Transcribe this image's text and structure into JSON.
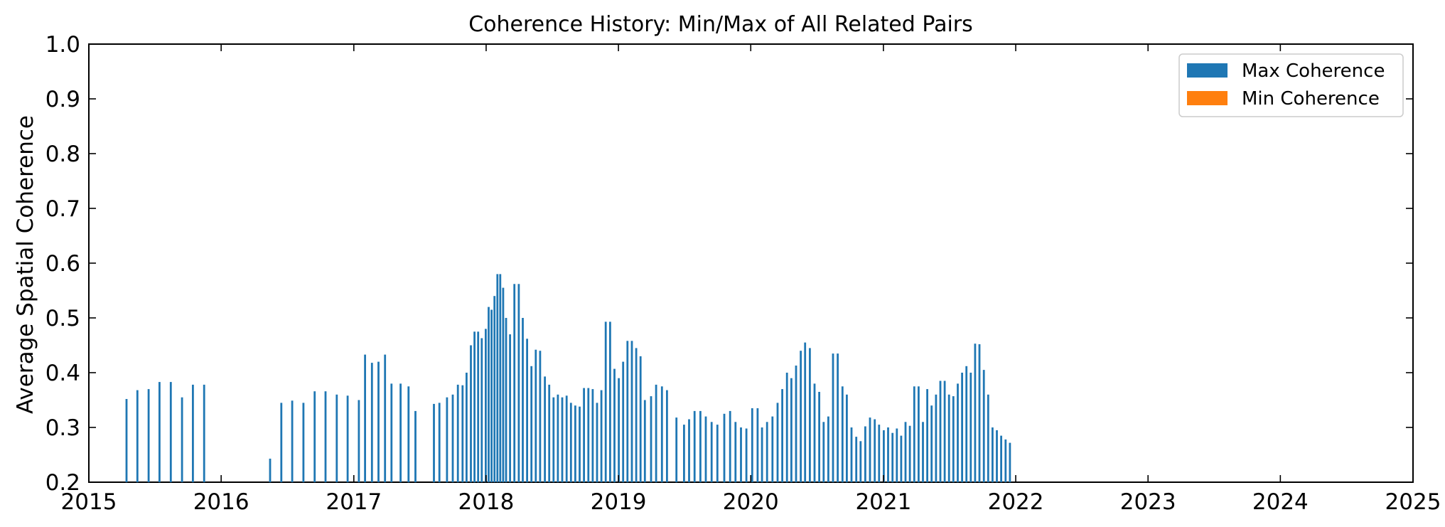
{
  "chart_data": {
    "type": "bar",
    "title": "Coherence History: Min/Max of All Related Pairs",
    "xlabel": "",
    "ylabel": "Average Spatial Coherence",
    "xlim": [
      "2015-01-01",
      "2025-01-01"
    ],
    "ylim": [
      0.2,
      1.0
    ],
    "x_ticks": [
      "2015",
      "2016",
      "2017",
      "2018",
      "2019",
      "2020",
      "2021",
      "2022",
      "2023",
      "2024",
      "2025"
    ],
    "y_ticks": [
      "0.2",
      "0.3",
      "0.4",
      "0.5",
      "0.6",
      "0.7",
      "0.8",
      "0.9",
      "1.0"
    ],
    "grid": false,
    "legend_position": "top-right",
    "series": [
      {
        "name": "Max Coherence",
        "color": "#1f77b4",
        "points": [
          [
            "2015-04-15",
            0.352
          ],
          [
            "2015-05-15",
            0.368
          ],
          [
            "2015-06-15",
            0.37
          ],
          [
            "2015-07-15",
            0.383
          ],
          [
            "2015-08-15",
            0.383
          ],
          [
            "2015-09-15",
            0.355
          ],
          [
            "2015-10-15",
            0.378
          ],
          [
            "2015-11-15",
            0.378
          ],
          [
            "2016-05-15",
            0.243
          ],
          [
            "2016-06-15",
            0.345
          ],
          [
            "2016-07-15",
            0.349
          ],
          [
            "2016-08-15",
            0.345
          ],
          [
            "2016-09-15",
            0.366
          ],
          [
            "2016-10-15",
            0.366
          ],
          [
            "2016-11-15",
            0.36
          ],
          [
            "2016-12-15",
            0.358
          ],
          [
            "2017-01-15",
            0.35
          ],
          [
            "2017-02-01",
            0.433
          ],
          [
            "2017-02-20",
            0.418
          ],
          [
            "2017-03-10",
            0.42
          ],
          [
            "2017-03-28",
            0.433
          ],
          [
            "2017-04-15",
            0.38
          ],
          [
            "2017-05-10",
            0.38
          ],
          [
            "2017-06-01",
            0.375
          ],
          [
            "2017-06-20",
            0.33
          ],
          [
            "2017-08-10",
            0.343
          ],
          [
            "2017-08-25",
            0.345
          ],
          [
            "2017-09-15",
            0.355
          ],
          [
            "2017-10-01",
            0.36
          ],
          [
            "2017-10-15",
            0.378
          ],
          [
            "2017-10-28",
            0.377
          ],
          [
            "2017-11-08",
            0.4
          ],
          [
            "2017-11-20",
            0.45
          ],
          [
            "2017-11-30",
            0.475
          ],
          [
            "2017-12-10",
            0.475
          ],
          [
            "2017-12-20",
            0.463
          ],
          [
            "2017-12-31",
            0.48
          ],
          [
            "2018-01-08",
            0.52
          ],
          [
            "2018-01-16",
            0.515
          ],
          [
            "2018-01-24",
            0.54
          ],
          [
            "2018-02-01",
            0.58
          ],
          [
            "2018-02-09",
            0.58
          ],
          [
            "2018-02-17",
            0.555
          ],
          [
            "2018-02-25",
            0.5
          ],
          [
            "2018-03-08",
            0.47
          ],
          [
            "2018-03-20",
            0.562
          ],
          [
            "2018-04-01",
            0.562
          ],
          [
            "2018-04-12",
            0.5
          ],
          [
            "2018-04-24",
            0.462
          ],
          [
            "2018-05-06",
            0.412
          ],
          [
            "2018-05-18",
            0.442
          ],
          [
            "2018-05-30",
            0.44
          ],
          [
            "2018-06-12",
            0.393
          ],
          [
            "2018-06-24",
            0.378
          ],
          [
            "2018-07-06",
            0.355
          ],
          [
            "2018-07-18",
            0.36
          ],
          [
            "2018-07-30",
            0.355
          ],
          [
            "2018-08-11",
            0.358
          ],
          [
            "2018-08-23",
            0.345
          ],
          [
            "2018-09-04",
            0.34
          ],
          [
            "2018-09-16",
            0.338
          ],
          [
            "2018-09-28",
            0.372
          ],
          [
            "2018-10-10",
            0.372
          ],
          [
            "2018-10-22",
            0.37
          ],
          [
            "2018-11-03",
            0.345
          ],
          [
            "2018-11-15",
            0.368
          ],
          [
            "2018-11-27",
            0.493
          ],
          [
            "2018-12-09",
            0.493
          ],
          [
            "2018-12-21",
            0.407
          ],
          [
            "2019-01-02",
            0.39
          ],
          [
            "2019-01-14",
            0.42
          ],
          [
            "2019-01-26",
            0.458
          ],
          [
            "2019-02-07",
            0.458
          ],
          [
            "2019-02-19",
            0.445
          ],
          [
            "2019-03-03",
            0.43
          ],
          [
            "2019-03-15",
            0.35
          ],
          [
            "2019-04-01",
            0.357
          ],
          [
            "2019-04-15",
            0.378
          ],
          [
            "2019-05-01",
            0.375
          ],
          [
            "2019-05-15",
            0.368
          ],
          [
            "2019-06-10",
            0.318
          ],
          [
            "2019-07-01",
            0.305
          ],
          [
            "2019-07-15",
            0.315
          ],
          [
            "2019-07-30",
            0.33
          ],
          [
            "2019-08-15",
            0.33
          ],
          [
            "2019-08-30",
            0.32
          ],
          [
            "2019-09-15",
            0.31
          ],
          [
            "2019-10-01",
            0.305
          ],
          [
            "2019-10-20",
            0.325
          ],
          [
            "2019-11-05",
            0.33
          ],
          [
            "2019-11-20",
            0.31
          ],
          [
            "2019-12-05",
            0.3
          ],
          [
            "2019-12-20",
            0.298
          ],
          [
            "2020-01-05",
            0.335
          ],
          [
            "2020-01-20",
            0.335
          ],
          [
            "2020-02-01",
            0.3
          ],
          [
            "2020-02-15",
            0.31
          ],
          [
            "2020-03-01",
            0.32
          ],
          [
            "2020-03-15",
            0.345
          ],
          [
            "2020-03-28",
            0.37
          ],
          [
            "2020-04-10",
            0.4
          ],
          [
            "2020-04-22",
            0.39
          ],
          [
            "2020-05-05",
            0.413
          ],
          [
            "2020-05-18",
            0.44
          ],
          [
            "2020-05-30",
            0.455
          ],
          [
            "2020-06-12",
            0.445
          ],
          [
            "2020-06-25",
            0.38
          ],
          [
            "2020-07-08",
            0.365
          ],
          [
            "2020-07-20",
            0.31
          ],
          [
            "2020-08-02",
            0.32
          ],
          [
            "2020-08-15",
            0.435
          ],
          [
            "2020-08-28",
            0.435
          ],
          [
            "2020-09-10",
            0.375
          ],
          [
            "2020-09-22",
            0.36
          ],
          [
            "2020-10-05",
            0.3
          ],
          [
            "2020-10-18",
            0.283
          ],
          [
            "2020-10-30",
            0.275
          ],
          [
            "2020-11-12",
            0.302
          ],
          [
            "2020-11-25",
            0.318
          ],
          [
            "2020-12-08",
            0.315
          ],
          [
            "2020-12-20",
            0.305
          ],
          [
            "2021-01-02",
            0.295
          ],
          [
            "2021-01-14",
            0.3
          ],
          [
            "2021-01-26",
            0.29
          ],
          [
            "2021-02-07",
            0.298
          ],
          [
            "2021-02-19",
            0.285
          ],
          [
            "2021-03-03",
            0.31
          ],
          [
            "2021-03-15",
            0.303
          ],
          [
            "2021-03-27",
            0.375
          ],
          [
            "2021-04-08",
            0.375
          ],
          [
            "2021-04-20",
            0.31
          ],
          [
            "2021-05-02",
            0.37
          ],
          [
            "2021-05-14",
            0.34
          ],
          [
            "2021-05-26",
            0.36
          ],
          [
            "2021-06-07",
            0.385
          ],
          [
            "2021-06-19",
            0.385
          ],
          [
            "2021-07-01",
            0.36
          ],
          [
            "2021-07-13",
            0.357
          ],
          [
            "2021-07-25",
            0.38
          ],
          [
            "2021-08-06",
            0.4
          ],
          [
            "2021-08-18",
            0.412
          ],
          [
            "2021-08-30",
            0.4
          ],
          [
            "2021-09-11",
            0.453
          ],
          [
            "2021-09-23",
            0.452
          ],
          [
            "2021-10-05",
            0.405
          ],
          [
            "2021-10-17",
            0.36
          ],
          [
            "2021-10-29",
            0.3
          ],
          [
            "2021-11-10",
            0.295
          ],
          [
            "2021-11-22",
            0.285
          ],
          [
            "2021-12-04",
            0.278
          ],
          [
            "2021-12-16",
            0.272
          ]
        ]
      },
      {
        "name": "Min Coherence",
        "color": "#ff7f0e",
        "points": []
      }
    ]
  },
  "_note": ""
}
